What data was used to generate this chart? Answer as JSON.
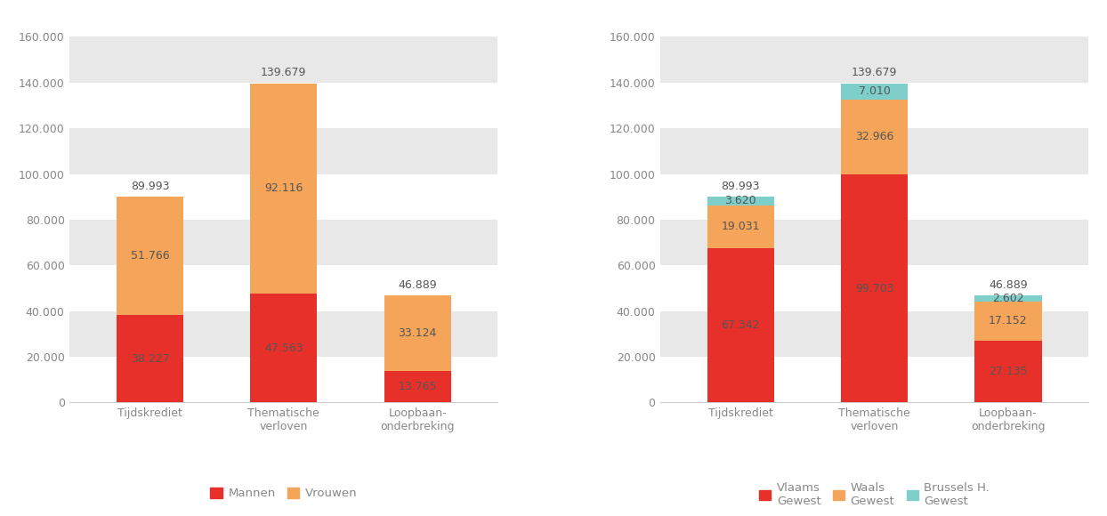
{
  "categories": [
    "Tijdskrediet",
    "Thematische\nverloven",
    "Loopbaan-\nonderbreking"
  ],
  "chart1": {
    "mannen": [
      38227,
      47563,
      13765
    ],
    "vrouwen": [
      51766,
      92116,
      33124
    ],
    "totals": [
      89993,
      139679,
      46889
    ],
    "color_mannen": "#e8302a",
    "color_vrouwen": "#f5a55a",
    "legend": [
      "Mannen",
      "Vrouwen"
    ]
  },
  "chart2": {
    "vlaams": [
      67342,
      99703,
      27135
    ],
    "waals": [
      19031,
      32966,
      17152
    ],
    "brussels": [
      3620,
      7010,
      2602
    ],
    "totals": [
      89993,
      139679,
      46889
    ],
    "color_vlaams": "#e8302a",
    "color_waals": "#f5a55a",
    "color_brussels": "#7ececa",
    "legend": [
      "Vlaams\nGewest",
      "Waals\nGewest",
      "Brussels H.\nGewest"
    ]
  },
  "ylim": [
    0,
    168000
  ],
  "yticks": [
    0,
    20000,
    40000,
    60000,
    80000,
    100000,
    120000,
    140000,
    160000
  ],
  "ytick_labels": [
    "0",
    "20.000",
    "40.000",
    "60.000",
    "80.000",
    "100.000",
    "120.000",
    "140.000",
    "160.000"
  ],
  "bar_width": 0.5,
  "bg_color": "#ffffff",
  "stripe_color": "#e8e8e8",
  "text_color": "#555555",
  "label_fontsize": 9,
  "tick_fontsize": 9,
  "legend_fontsize": 9.5,
  "ax_text_color": "#888888"
}
